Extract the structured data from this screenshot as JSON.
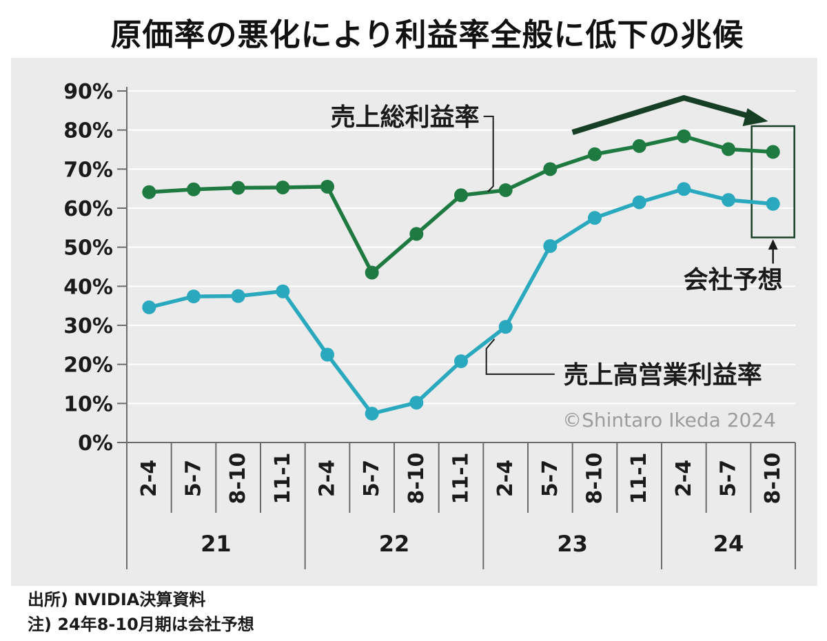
{
  "title": "原価率の悪化により利益率全般に低下の兆候",
  "chart_data": {
    "type": "line",
    "categories": [
      "2-4",
      "5-7",
      "8-10",
      "11-1",
      "2-4",
      "5-7",
      "8-10",
      "11-1",
      "2-4",
      "5-7",
      "8-10",
      "11-1",
      "2-4",
      "5-7",
      "8-10"
    ],
    "years": [
      {
        "label": "21",
        "from": 0,
        "to": 3
      },
      {
        "label": "22",
        "from": 4,
        "to": 7
      },
      {
        "label": "23",
        "from": 8,
        "to": 11
      },
      {
        "label": "24",
        "from": 12,
        "to": 14
      }
    ],
    "series": [
      {
        "name": "売上総利益率",
        "color": "#1e7a40",
        "values": [
          64.1,
          64.8,
          65.2,
          65.3,
          65.5,
          43.5,
          53.4,
          63.3,
          64.6,
          70.0,
          73.8,
          75.9,
          78.4,
          75.1,
          74.4
        ]
      },
      {
        "name": "売上高営業利益率",
        "color": "#2aa9be",
        "values": [
          34.6,
          37.4,
          37.5,
          38.7,
          22.5,
          7.4,
          10.2,
          20.8,
          29.6,
          50.3,
          57.5,
          61.5,
          64.9,
          62.1,
          61.1
        ]
      }
    ],
    "ylim": [
      0,
      90
    ],
    "yticks": [
      "0%",
      "10%",
      "20%",
      "30%",
      "40%",
      "50%",
      "60%",
      "70%",
      "80%",
      "90%"
    ],
    "forecast_label": "会社予想",
    "forecast_index": 14
  },
  "copyright": "©Shintaro Ikeda 2024",
  "footnotes": [
    "出所) NVIDIA決算資料",
    "注) 24年8-10月期は会社予想"
  ]
}
